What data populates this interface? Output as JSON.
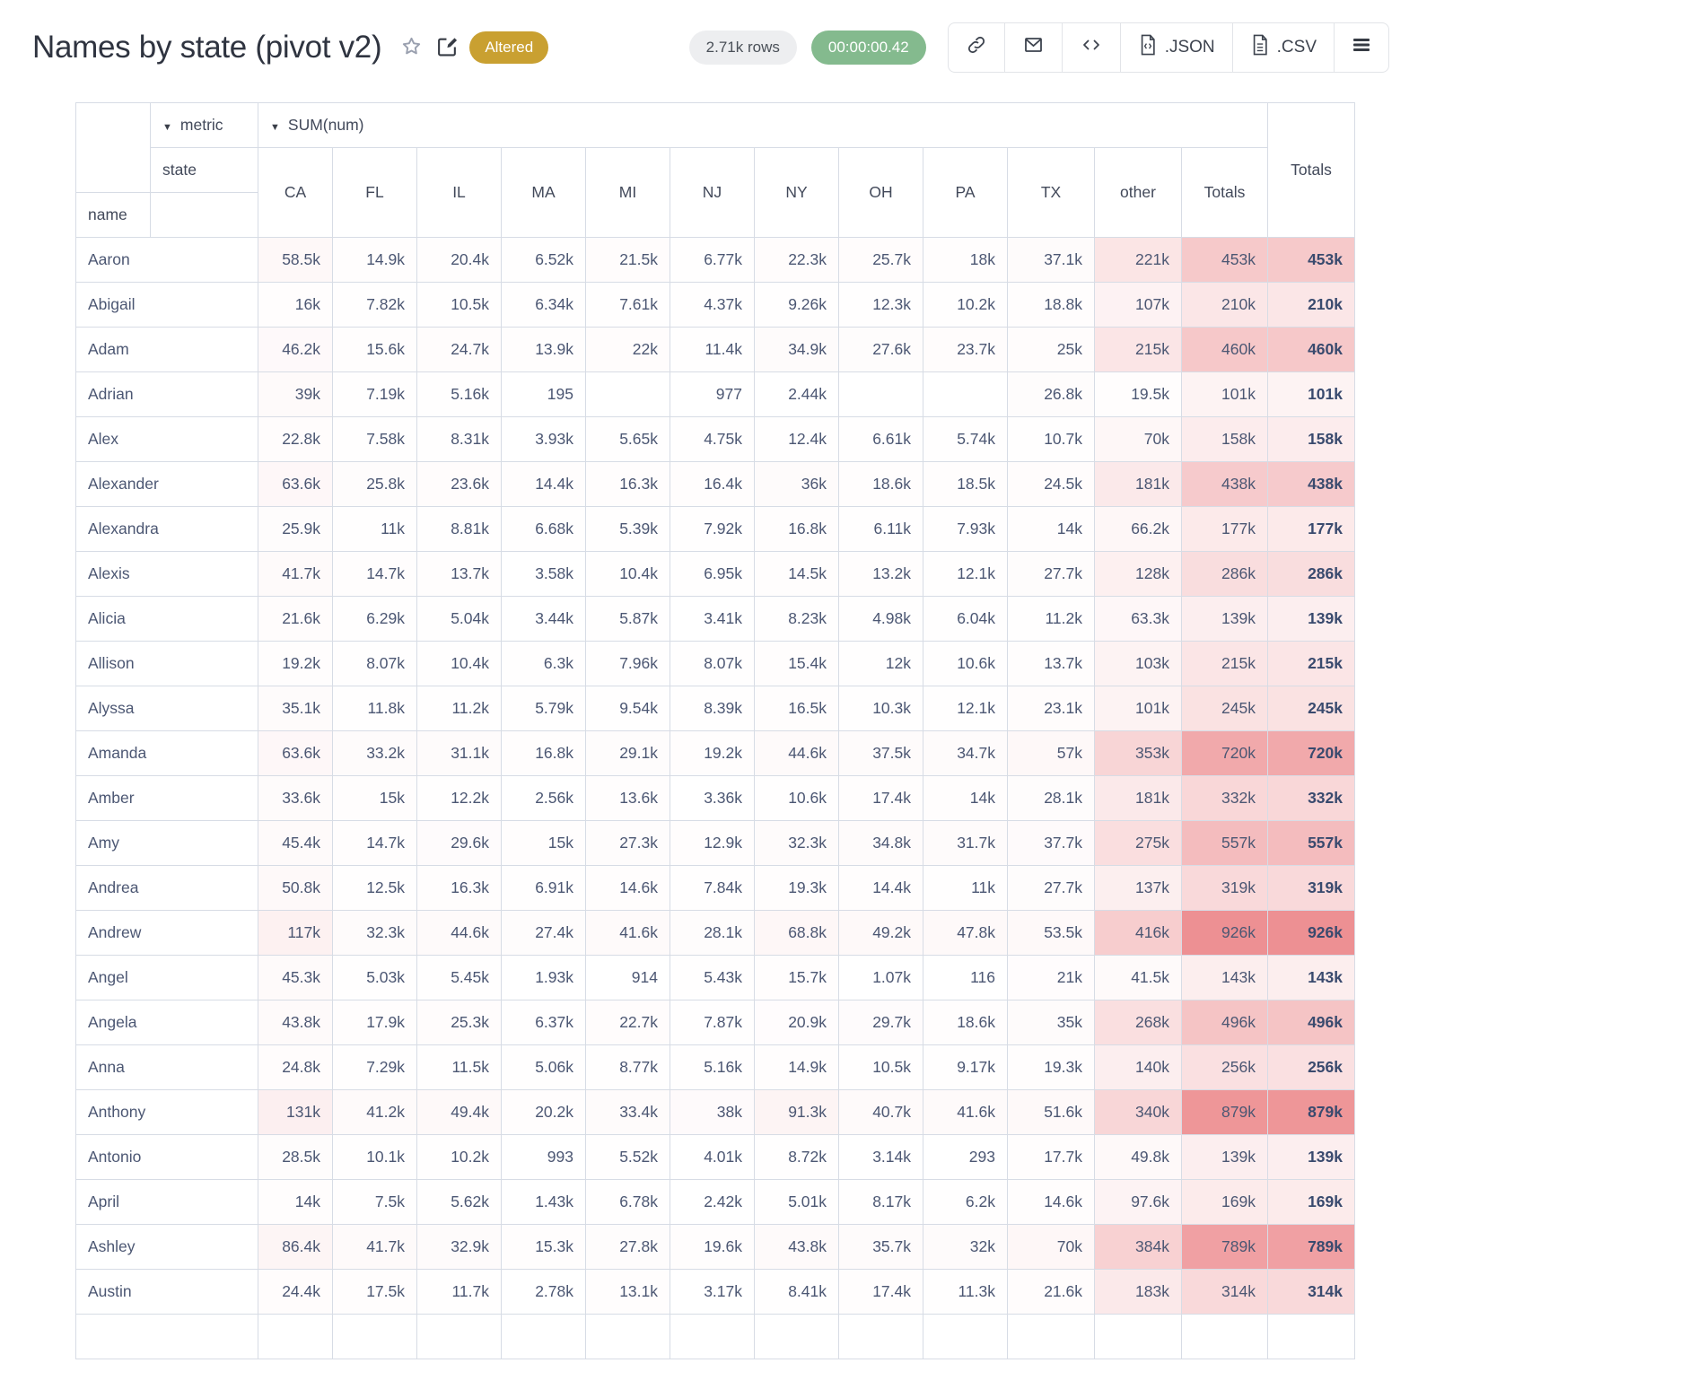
{
  "header": {
    "title": "Names by state (pivot v2)",
    "altered_badge": "Altered",
    "row_count": "2.71k rows",
    "duration": "00:00:00.42",
    "json_label": ".JSON",
    "csv_label": ".CSV"
  },
  "colors": {
    "badge_gold": "#c9a031",
    "pill_gray": "#edeef0",
    "pill_green": "#84ba8e",
    "grid_line": "#d7dce5",
    "cell_text": "#4c5773",
    "heat_base_rgb": [
      237,
      144,
      147
    ]
  },
  "pivot": {
    "metric_dropdown": "metric",
    "sum_dropdown": "SUM(num)",
    "row_dimension": "name",
    "col_dimension": "state",
    "columns": [
      "CA",
      "FL",
      "IL",
      "MA",
      "MI",
      "NJ",
      "NY",
      "OH",
      "PA",
      "TX",
      "other",
      "Totals"
    ],
    "grand_total_label": "Totals",
    "heat_max": 926000,
    "rows": [
      {
        "name": "Aaron",
        "values": [
          "58.5k",
          "14.9k",
          "20.4k",
          "6.52k",
          "21.5k",
          "6.77k",
          "22.3k",
          "25.7k",
          "18k",
          "37.1k",
          "221k",
          "453k"
        ],
        "total": "453k"
      },
      {
        "name": "Abigail",
        "values": [
          "16k",
          "7.82k",
          "10.5k",
          "6.34k",
          "7.61k",
          "4.37k",
          "9.26k",
          "12.3k",
          "10.2k",
          "18.8k",
          "107k",
          "210k"
        ],
        "total": "210k"
      },
      {
        "name": "Adam",
        "values": [
          "46.2k",
          "15.6k",
          "24.7k",
          "13.9k",
          "22k",
          "11.4k",
          "34.9k",
          "27.6k",
          "23.7k",
          "25k",
          "215k",
          "460k"
        ],
        "total": "460k"
      },
      {
        "name": "Adrian",
        "values": [
          "39k",
          "7.19k",
          "5.16k",
          "195",
          "",
          "977",
          "2.44k",
          "",
          "",
          "26.8k",
          "19.5k",
          "101k"
        ],
        "total": "101k"
      },
      {
        "name": "Alex",
        "values": [
          "22.8k",
          "7.58k",
          "8.31k",
          "3.93k",
          "5.65k",
          "4.75k",
          "12.4k",
          "6.61k",
          "5.74k",
          "10.7k",
          "70k",
          "158k"
        ],
        "total": "158k"
      },
      {
        "name": "Alexander",
        "values": [
          "63.6k",
          "25.8k",
          "23.6k",
          "14.4k",
          "16.3k",
          "16.4k",
          "36k",
          "18.6k",
          "18.5k",
          "24.5k",
          "181k",
          "438k"
        ],
        "total": "438k"
      },
      {
        "name": "Alexandra",
        "values": [
          "25.9k",
          "11k",
          "8.81k",
          "6.68k",
          "5.39k",
          "7.92k",
          "16.8k",
          "6.11k",
          "7.93k",
          "14k",
          "66.2k",
          "177k"
        ],
        "total": "177k"
      },
      {
        "name": "Alexis",
        "values": [
          "41.7k",
          "14.7k",
          "13.7k",
          "3.58k",
          "10.4k",
          "6.95k",
          "14.5k",
          "13.2k",
          "12.1k",
          "27.7k",
          "128k",
          "286k"
        ],
        "total": "286k"
      },
      {
        "name": "Alicia",
        "values": [
          "21.6k",
          "6.29k",
          "5.04k",
          "3.44k",
          "5.87k",
          "3.41k",
          "8.23k",
          "4.98k",
          "6.04k",
          "11.2k",
          "63.3k",
          "139k"
        ],
        "total": "139k"
      },
      {
        "name": "Allison",
        "values": [
          "19.2k",
          "8.07k",
          "10.4k",
          "6.3k",
          "7.96k",
          "8.07k",
          "15.4k",
          "12k",
          "10.6k",
          "13.7k",
          "103k",
          "215k"
        ],
        "total": "215k"
      },
      {
        "name": "Alyssa",
        "values": [
          "35.1k",
          "11.8k",
          "11.2k",
          "5.79k",
          "9.54k",
          "8.39k",
          "16.5k",
          "10.3k",
          "12.1k",
          "23.1k",
          "101k",
          "245k"
        ],
        "total": "245k"
      },
      {
        "name": "Amanda",
        "values": [
          "63.6k",
          "33.2k",
          "31.1k",
          "16.8k",
          "29.1k",
          "19.2k",
          "44.6k",
          "37.5k",
          "34.7k",
          "57k",
          "353k",
          "720k"
        ],
        "total": "720k"
      },
      {
        "name": "Amber",
        "values": [
          "33.6k",
          "15k",
          "12.2k",
          "2.56k",
          "13.6k",
          "3.36k",
          "10.6k",
          "17.4k",
          "14k",
          "28.1k",
          "181k",
          "332k"
        ],
        "total": "332k"
      },
      {
        "name": "Amy",
        "values": [
          "45.4k",
          "14.7k",
          "29.6k",
          "15k",
          "27.3k",
          "12.9k",
          "32.3k",
          "34.8k",
          "31.7k",
          "37.7k",
          "275k",
          "557k"
        ],
        "total": "557k"
      },
      {
        "name": "Andrea",
        "values": [
          "50.8k",
          "12.5k",
          "16.3k",
          "6.91k",
          "14.6k",
          "7.84k",
          "19.3k",
          "14.4k",
          "11k",
          "27.7k",
          "137k",
          "319k"
        ],
        "total": "319k"
      },
      {
        "name": "Andrew",
        "values": [
          "117k",
          "32.3k",
          "44.6k",
          "27.4k",
          "41.6k",
          "28.1k",
          "68.8k",
          "49.2k",
          "47.8k",
          "53.5k",
          "416k",
          "926k"
        ],
        "total": "926k"
      },
      {
        "name": "Angel",
        "values": [
          "45.3k",
          "5.03k",
          "5.45k",
          "1.93k",
          "914",
          "5.43k",
          "15.7k",
          "1.07k",
          "116",
          "21k",
          "41.5k",
          "143k"
        ],
        "total": "143k"
      },
      {
        "name": "Angela",
        "values": [
          "43.8k",
          "17.9k",
          "25.3k",
          "6.37k",
          "22.7k",
          "7.87k",
          "20.9k",
          "29.7k",
          "18.6k",
          "35k",
          "268k",
          "496k"
        ],
        "total": "496k"
      },
      {
        "name": "Anna",
        "values": [
          "24.8k",
          "7.29k",
          "11.5k",
          "5.06k",
          "8.77k",
          "5.16k",
          "14.9k",
          "10.5k",
          "9.17k",
          "19.3k",
          "140k",
          "256k"
        ],
        "total": "256k"
      },
      {
        "name": "Anthony",
        "values": [
          "131k",
          "41.2k",
          "49.4k",
          "20.2k",
          "33.4k",
          "38k",
          "91.3k",
          "40.7k",
          "41.6k",
          "51.6k",
          "340k",
          "879k"
        ],
        "total": "879k"
      },
      {
        "name": "Antonio",
        "values": [
          "28.5k",
          "10.1k",
          "10.2k",
          "993",
          "5.52k",
          "4.01k",
          "8.72k",
          "3.14k",
          "293",
          "17.7k",
          "49.8k",
          "139k"
        ],
        "total": "139k"
      },
      {
        "name": "April",
        "values": [
          "14k",
          "7.5k",
          "5.62k",
          "1.43k",
          "6.78k",
          "2.42k",
          "5.01k",
          "8.17k",
          "6.2k",
          "14.6k",
          "97.6k",
          "169k"
        ],
        "total": "169k"
      },
      {
        "name": "Ashley",
        "values": [
          "86.4k",
          "41.7k",
          "32.9k",
          "15.3k",
          "27.8k",
          "19.6k",
          "43.8k",
          "35.7k",
          "32k",
          "70k",
          "384k",
          "789k"
        ],
        "total": "789k"
      },
      {
        "name": "Austin",
        "values": [
          "24.4k",
          "17.5k",
          "11.7k",
          "2.78k",
          "13.1k",
          "3.17k",
          "8.41k",
          "17.4k",
          "11.3k",
          "21.6k",
          "183k",
          "314k"
        ],
        "total": "314k"
      }
    ],
    "partial_next_row": true
  }
}
